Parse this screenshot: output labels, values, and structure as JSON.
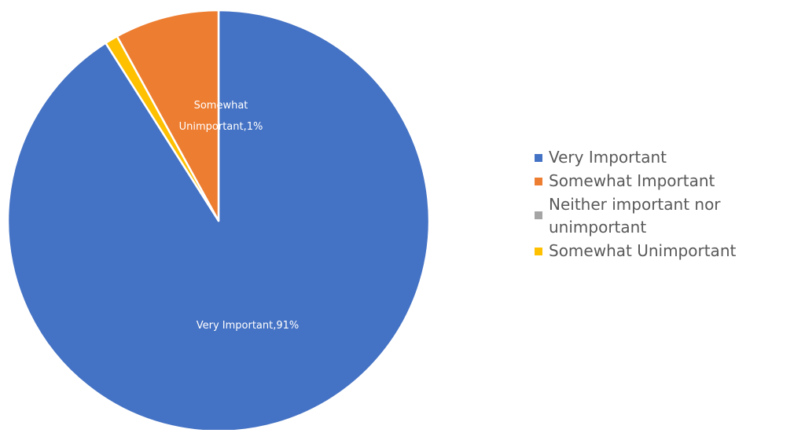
{
  "chart_data": {
    "type": "pie",
    "categories": [
      "Very Important",
      "Somewhat Important",
      "Neither important nor unimportant",
      "Somewhat Unimportant"
    ],
    "values": [
      91,
      8,
      0,
      1
    ],
    "unit": "%",
    "colors": [
      "#4472c4",
      "#ed7d31",
      "#a5a5a5",
      "#ffc000"
    ],
    "data_labels": [
      "Very Important,91%",
      "",
      "",
      "Somewhat Unimportant,1%"
    ],
    "legend_position": "right",
    "title": ""
  }
}
